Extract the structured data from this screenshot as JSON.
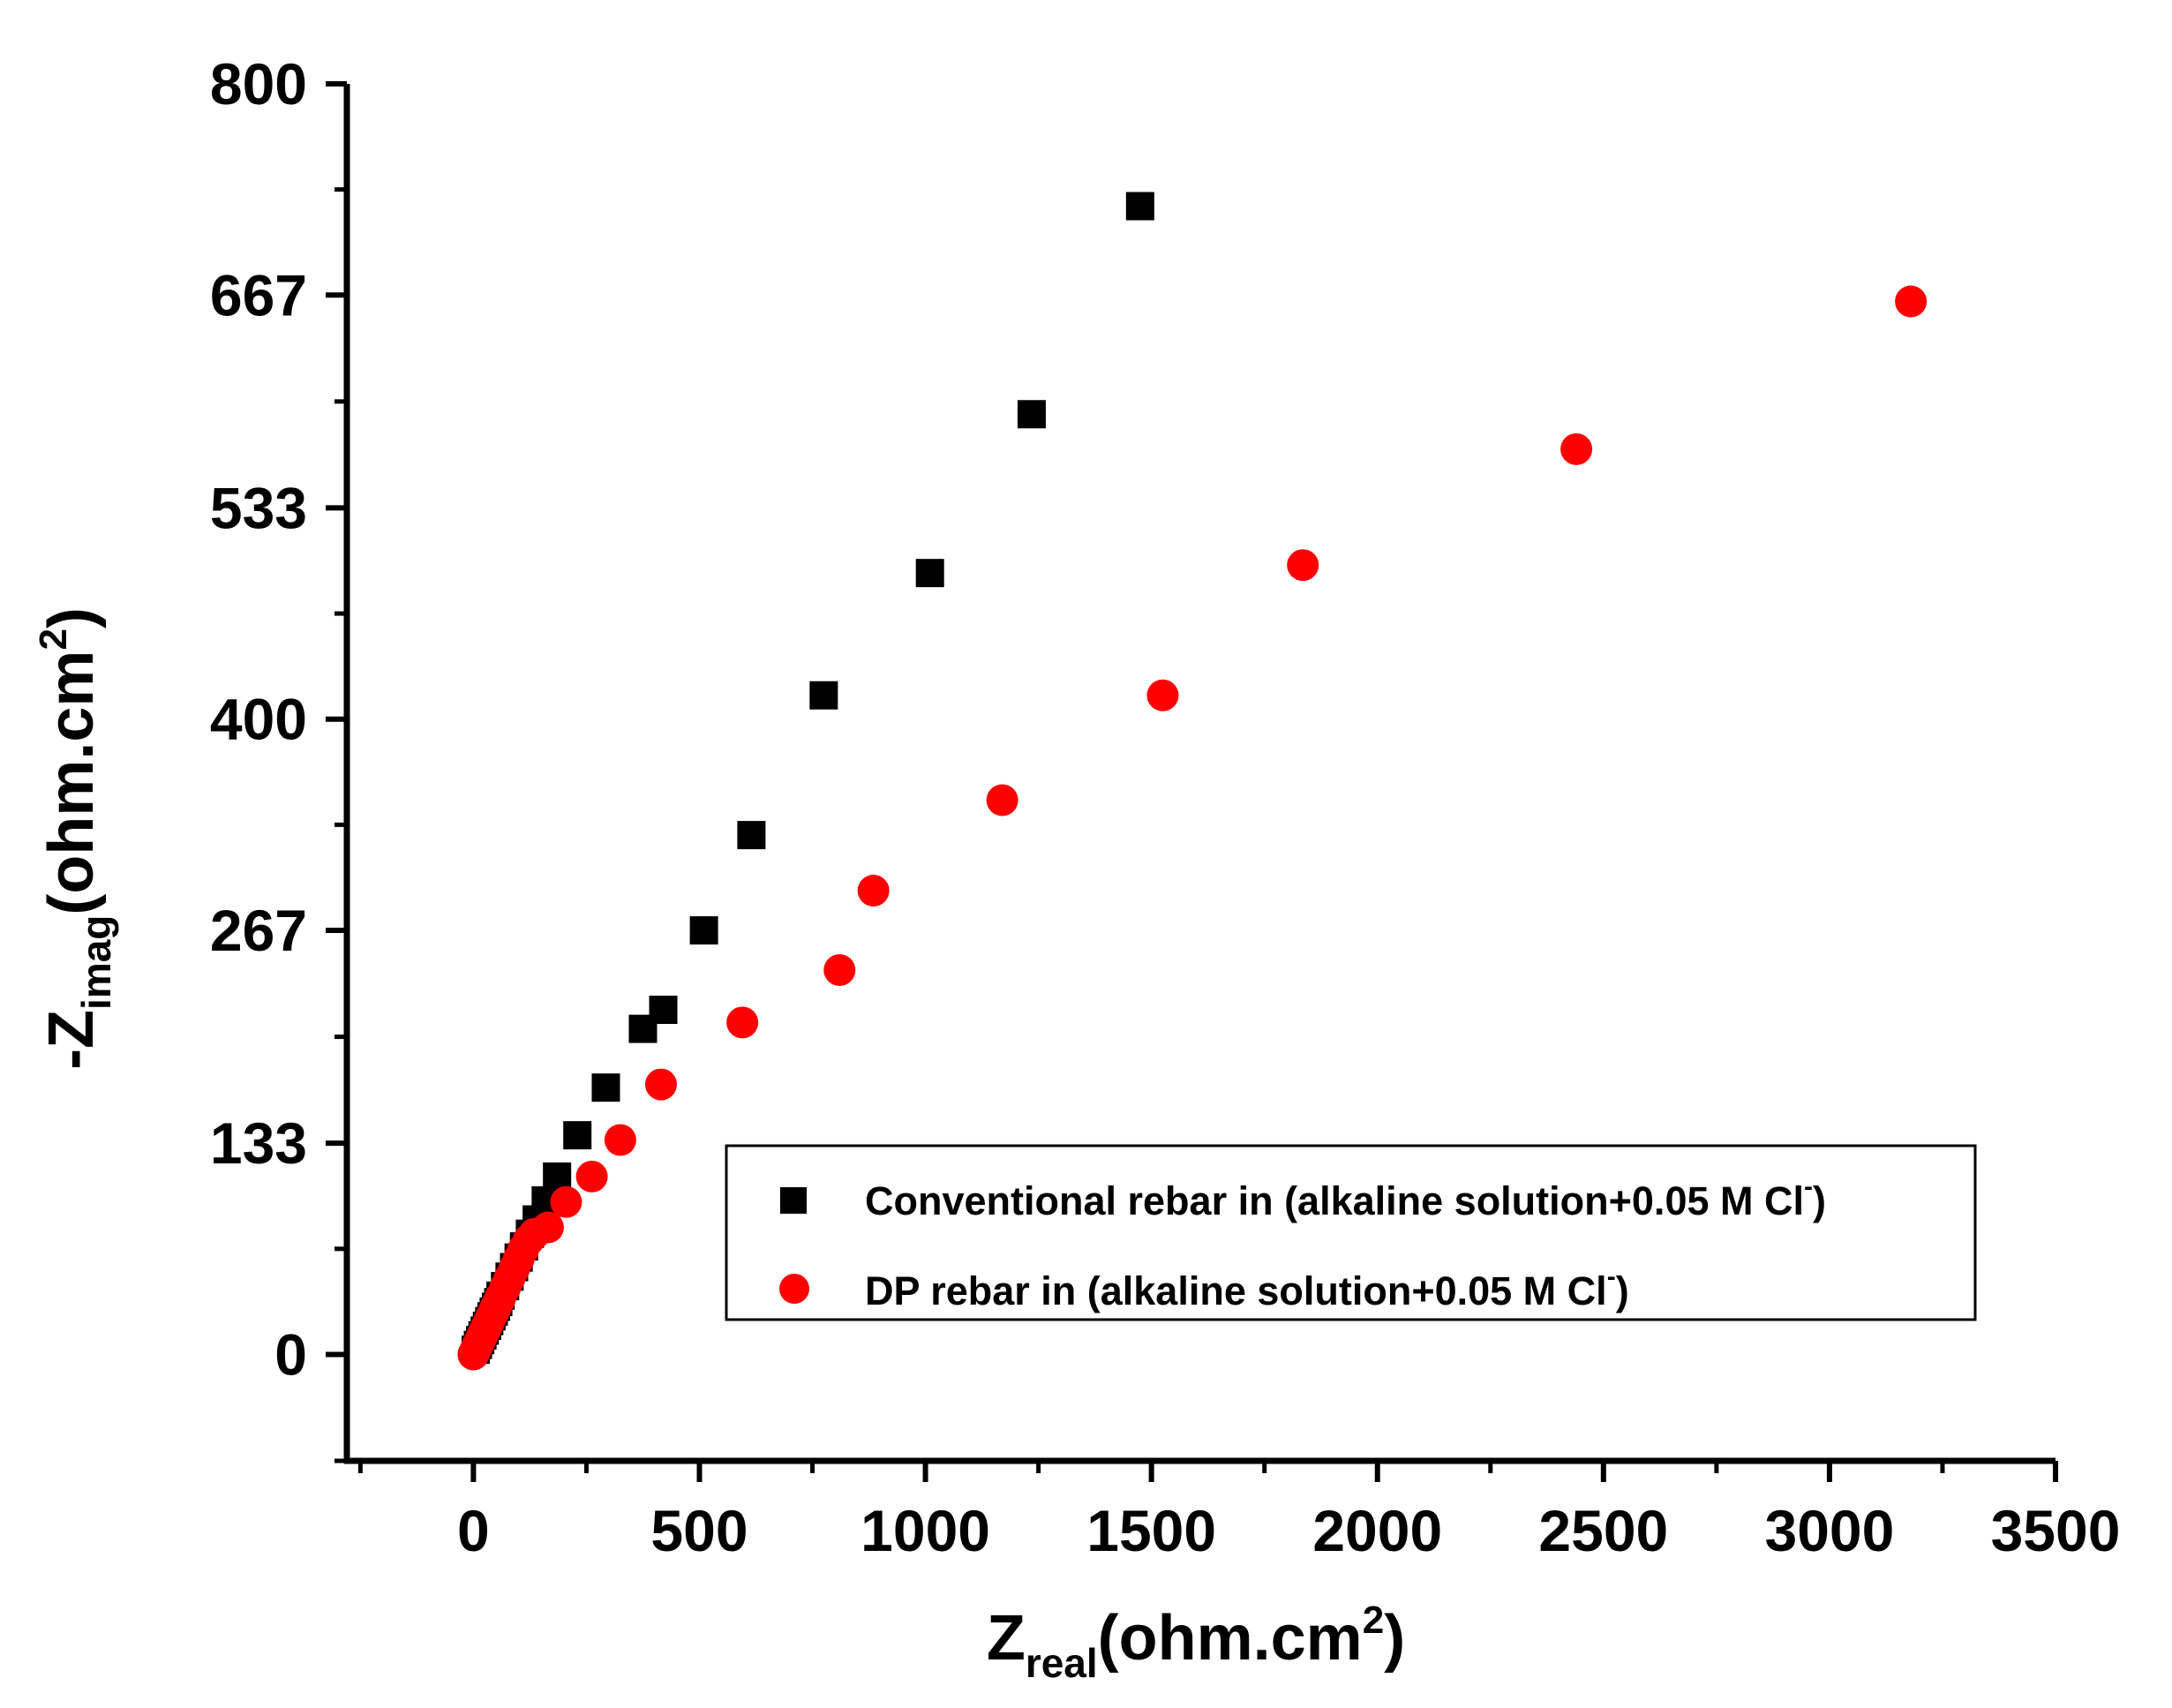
{
  "chart_data": {
    "type": "scatter",
    "title": "",
    "xlabel": {
      "main": "Z",
      "sub": "real",
      "unit": "(ohm.cm",
      "sup": "2",
      "close": ")"
    },
    "ylabel": {
      "main": "-Z",
      "sub": "imag",
      "unit": "(ohm.cm",
      "sup": "2",
      "close": ")"
    },
    "xlim": [
      -280,
      3500
    ],
    "ylim": [
      -67,
      800
    ],
    "xticks": [
      "0",
      "500",
      "1000",
      "1500",
      "2000",
      "2500",
      "3000",
      "3500"
    ],
    "yticks": [
      "0",
      "133",
      "267",
      "400",
      "533",
      "667",
      "800"
    ],
    "legend": {
      "position": "lower-right",
      "entries": [
        {
          "text": "Conventional  rebar in (alkaline solution+0.05 M Cl",
          "sup": "-",
          "close": ")"
        },
        {
          "text": "DP rebar in (alkaline solution+0.05 M Cl",
          "sup": "-",
          "close": ")"
        }
      ]
    },
    "series": [
      {
        "name": "Conventional  rebar in (alkaline solution+0.05 M Cl-)",
        "marker": "square",
        "color": "#000000",
        "x": [
          5,
          10,
          15,
          20,
          25,
          30,
          35,
          40,
          45,
          50,
          55,
          60,
          70,
          80,
          90,
          100,
          112,
          125,
          140,
          160,
          185,
          230,
          293,
          375,
          420,
          510,
          615,
          775,
          1010,
          1235,
          1475
        ],
        "y": [
          3,
          6,
          9,
          12,
          15,
          18,
          21,
          24,
          27,
          30,
          33,
          37,
          43,
          49,
          55,
          61,
          68,
          76,
          85,
          97,
          112,
          138,
          168,
          205,
          217,
          267,
          327,
          415,
          492,
          592,
          723
        ]
      },
      {
        "name": "DP rebar in (alkaline solution+0.05 M Cl-)",
        "marker": "circle",
        "color": "#ff0000",
        "x": [
          0,
          5,
          10,
          15,
          20,
          25,
          30,
          35,
          40,
          45,
          50,
          55,
          60,
          70,
          80,
          90,
          100,
          110,
          122,
          135,
          165,
          205,
          262,
          325,
          415,
          595,
          810,
          885,
          1170,
          1525,
          1835,
          2440,
          3180
        ],
        "y": [
          0,
          3,
          6,
          9,
          12,
          15,
          18,
          21,
          24,
          27,
          30,
          33,
          36,
          42,
          48,
          54,
          60,
          66,
          72,
          76,
          80,
          96,
          112,
          135,
          170,
          209,
          242,
          292,
          349,
          415,
          497,
          570,
          663
        ]
      }
    ]
  }
}
